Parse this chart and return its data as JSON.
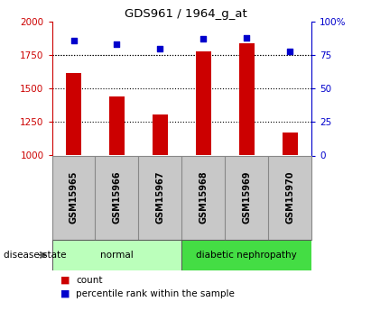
{
  "title": "GDS961 / 1964_g_at",
  "samples": [
    "GSM15965",
    "GSM15966",
    "GSM15967",
    "GSM15968",
    "GSM15969",
    "GSM15970"
  ],
  "count_values": [
    1620,
    1440,
    1310,
    1780,
    1840,
    1175
  ],
  "percentile_values": [
    86,
    83,
    80,
    87,
    88,
    78
  ],
  "ylim_left": [
    1000,
    2000
  ],
  "ylim_right": [
    0,
    100
  ],
  "yticks_left": [
    1000,
    1250,
    1500,
    1750,
    2000
  ],
  "yticks_right": [
    0,
    25,
    50,
    75,
    100
  ],
  "bar_color": "#cc0000",
  "dot_color": "#0000cc",
  "bar_bottom": 1000,
  "groups": [
    {
      "label": "normal",
      "indices": [
        0,
        1,
        2
      ],
      "color": "#bbffbb"
    },
    {
      "label": "diabetic nephropathy",
      "indices": [
        3,
        4,
        5
      ],
      "color": "#44dd44"
    }
  ],
  "disease_state_label": "disease state",
  "legend_items": [
    {
      "color": "#cc0000",
      "label": "count"
    },
    {
      "color": "#0000cc",
      "label": "percentile rank within the sample"
    }
  ],
  "background_color": "#ffffff",
  "plot_bg_color": "#ffffff",
  "tick_label_area_color": "#c8c8c8",
  "grid_color": "#000000",
  "left_tick_color": "#cc0000",
  "right_tick_color": "#0000cc",
  "bar_width": 0.35
}
